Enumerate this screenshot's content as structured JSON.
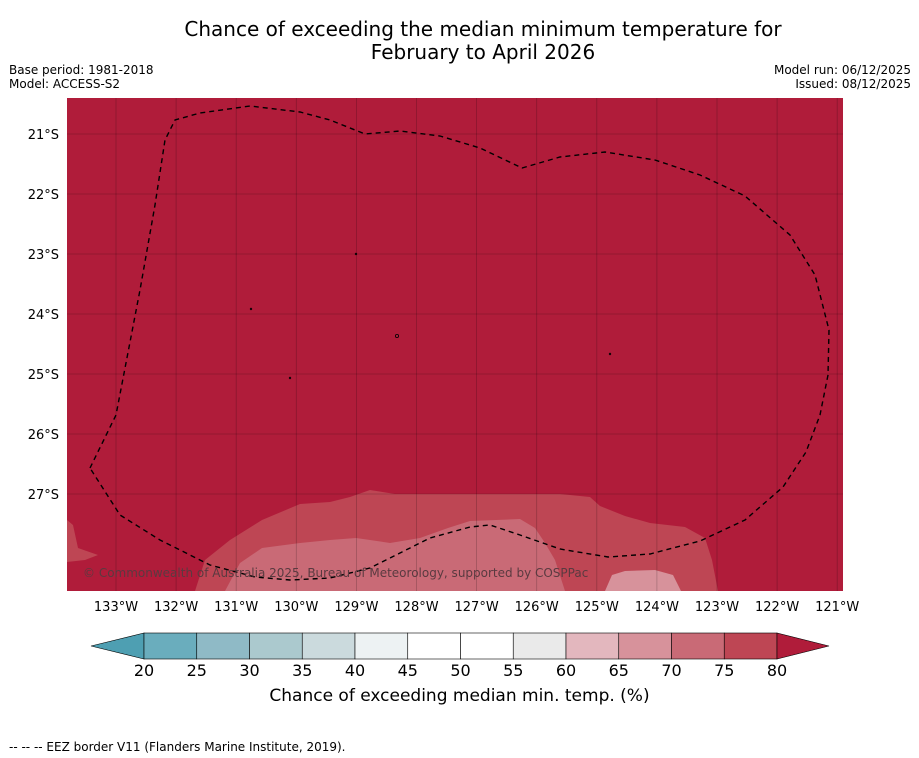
{
  "title": {
    "line1": "Chance of exceeding the median minimum temperature for",
    "line2": "February to April 2026"
  },
  "meta": {
    "base_period": "Base period: 1981-2018",
    "model": "Model: ACCESS-S2",
    "model_run": "Model run: 06/12/2025",
    "issued": "Issued: 08/12/2025"
  },
  "map": {
    "copyright": "© Commonwealth of Australia 2025, Bureau of Meteorology, supported by COSPPac",
    "lat_labels": [
      "21°S",
      "22°S",
      "23°S",
      "24°S",
      "25°S",
      "26°S",
      "27°S"
    ],
    "lon_labels": [
      "133°W",
      "132°W",
      "131°W",
      "130°W",
      "129°W",
      "128°W",
      "127°W",
      "126°W",
      "125°W",
      "124°W",
      "123°W",
      "122°W",
      "121°W"
    ]
  },
  "chart_data": {
    "type": "heatmap",
    "title": "Chance of exceeding the median minimum temperature for February to April 2026",
    "variable": "Chance of exceeding median min. temp. (%)",
    "lat_range": [
      -28.6,
      -20.4
    ],
    "lon_range": [
      -133.8,
      -120.9
    ],
    "dominant_category": "> 80",
    "lower_categories_near_south_edge": [
      "70-75",
      "65-70"
    ],
    "colorbar": {
      "ticks": [
        20,
        25,
        30,
        35,
        40,
        45,
        50,
        55,
        60,
        65,
        70,
        75,
        80
      ],
      "colors": [
        "#6aadbd",
        "#8fbac6",
        "#abc9ce",
        "#cbdadd",
        "#edf2f3",
        "#ffffff",
        "#ffffff",
        "#eaeaea",
        "#e3b7be",
        "#d7929b",
        "#c96a76",
        "#be4654"
      ],
      "under_color": "#4e9fb2",
      "over_color": "#b01c3a",
      "label": "Chance of exceeding median min. temp. (%)"
    },
    "overlay": "EEZ border (dashed)"
  },
  "colors": {
    "over80": "#b01c3a",
    "c75_80": "#be4654",
    "c70_75": "#c96a76",
    "c65_70": "#d7929b"
  },
  "footer": "--  --  -- EEZ border V11 (Flanders Marine Institute, 2019)."
}
